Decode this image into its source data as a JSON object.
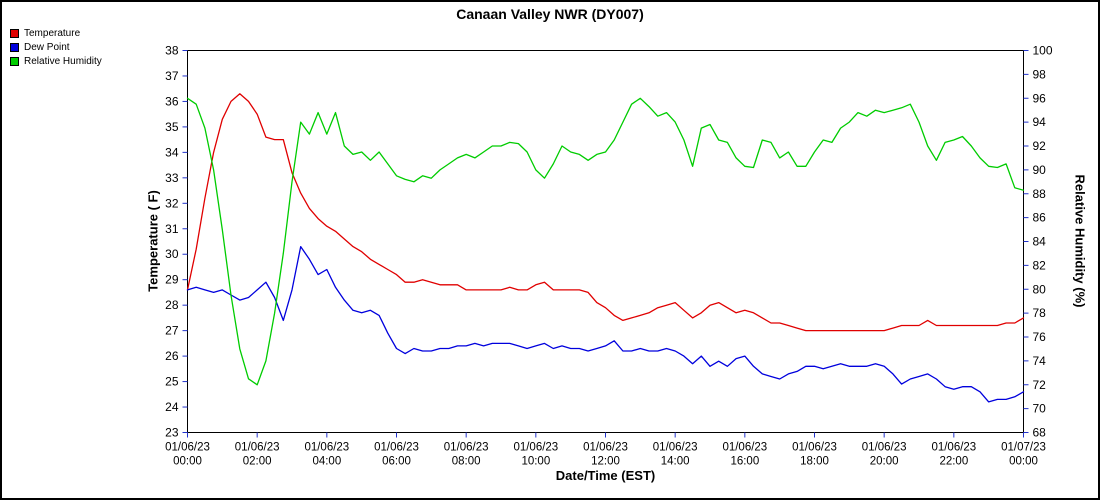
{
  "chart_data": {
    "type": "line",
    "title": "Canaan Valley NWR (DY007)",
    "tick_color": "#2233cc",
    "plot_background": "#ffffff",
    "grid": false,
    "legend_position": "top-left",
    "y_left": {
      "label": "Temperature ( F)",
      "min": 23,
      "max": 38,
      "step": 1
    },
    "y_right": {
      "label": "Relative Humidity (%)",
      "min": 68,
      "max": 100,
      "step": 2
    },
    "x_axis": {
      "label": "Date/Time (EST)",
      "min": 0,
      "max": 24,
      "ticks": [
        {
          "hour": 0,
          "date": "01/06/23",
          "time": "00:00"
        },
        {
          "hour": 2,
          "date": "01/06/23",
          "time": "02:00"
        },
        {
          "hour": 4,
          "date": "01/06/23",
          "time": "04:00"
        },
        {
          "hour": 6,
          "date": "01/06/23",
          "time": "06:00"
        },
        {
          "hour": 8,
          "date": "01/06/23",
          "time": "08:00"
        },
        {
          "hour": 10,
          "date": "01/06/23",
          "time": "10:00"
        },
        {
          "hour": 12,
          "date": "01/06/23",
          "time": "12:00"
        },
        {
          "hour": 14,
          "date": "01/06/23",
          "time": "14:00"
        },
        {
          "hour": 16,
          "date": "01/06/23",
          "time": "16:00"
        },
        {
          "hour": 18,
          "date": "01/06/23",
          "time": "18:00"
        },
        {
          "hour": 20,
          "date": "01/06/23",
          "time": "20:00"
        },
        {
          "hour": 22,
          "date": "01/06/23",
          "time": "22:00"
        },
        {
          "hour": 24,
          "date": "01/07/23",
          "time": "00:00"
        }
      ]
    },
    "x_hours": [
      0,
      0.25,
      0.5,
      0.75,
      1,
      1.25,
      1.5,
      1.75,
      2,
      2.25,
      2.5,
      2.75,
      3,
      3.25,
      3.5,
      3.75,
      4,
      4.25,
      4.5,
      4.75,
      5,
      5.25,
      5.5,
      5.75,
      6,
      6.25,
      6.5,
      6.75,
      7,
      7.25,
      7.5,
      7.75,
      8,
      8.25,
      8.5,
      8.75,
      9,
      9.25,
      9.5,
      9.75,
      10,
      10.25,
      10.5,
      10.75,
      11,
      11.25,
      11.5,
      11.75,
      12,
      12.25,
      12.5,
      12.75,
      13,
      13.25,
      13.5,
      13.75,
      14,
      14.25,
      14.5,
      14.75,
      15,
      15.25,
      15.5,
      15.75,
      16,
      16.25,
      16.5,
      16.75,
      17,
      17.25,
      17.5,
      17.75,
      18,
      18.25,
      18.5,
      18.75,
      19,
      19.25,
      19.5,
      19.75,
      20,
      20.25,
      20.5,
      20.75,
      21,
      21.25,
      21.5,
      21.75,
      22,
      22.25,
      22.5,
      22.75,
      23,
      23.25,
      23.5,
      23.75,
      24
    ],
    "series": [
      {
        "name": "Temperature",
        "color": "#e00000",
        "axis": "left",
        "unit": "F",
        "values": [
          28.6,
          30.2,
          32.2,
          34.0,
          35.3,
          36.0,
          36.3,
          36.0,
          35.5,
          34.6,
          34.5,
          34.5,
          33.2,
          32.4,
          31.8,
          31.4,
          31.1,
          30.9,
          30.6,
          30.3,
          30.1,
          29.8,
          29.6,
          29.4,
          29.2,
          28.9,
          28.9,
          29.0,
          28.9,
          28.8,
          28.8,
          28.8,
          28.6,
          28.6,
          28.6,
          28.6,
          28.6,
          28.7,
          28.6,
          28.6,
          28.8,
          28.9,
          28.6,
          28.6,
          28.6,
          28.6,
          28.5,
          28.1,
          27.9,
          27.6,
          27.4,
          27.5,
          27.6,
          27.7,
          27.9,
          28.0,
          28.1,
          27.8,
          27.5,
          27.7,
          28.0,
          28.1,
          27.9,
          27.7,
          27.8,
          27.7,
          27.5,
          27.3,
          27.3,
          27.2,
          27.1,
          27.0,
          27.0,
          27.0,
          27.0,
          27.0,
          27.0,
          27.0,
          27.0,
          27.0,
          27.0,
          27.1,
          27.2,
          27.2,
          27.2,
          27.4,
          27.2,
          27.2,
          27.2,
          27.2,
          27.2,
          27.2,
          27.2,
          27.2,
          27.3,
          27.3,
          27.5
        ]
      },
      {
        "name": "Dew Point",
        "color": "#0000dd",
        "axis": "left",
        "unit": "F",
        "values": [
          28.6,
          28.7,
          28.6,
          28.5,
          28.6,
          28.4,
          28.2,
          28.3,
          28.6,
          28.9,
          28.3,
          27.4,
          28.6,
          30.3,
          29.8,
          29.2,
          29.4,
          28.7,
          28.2,
          27.8,
          27.7,
          27.8,
          27.6,
          26.9,
          26.3,
          26.1,
          26.3,
          26.2,
          26.2,
          26.3,
          26.3,
          26.4,
          26.4,
          26.5,
          26.4,
          26.5,
          26.5,
          26.5,
          26.4,
          26.3,
          26.4,
          26.5,
          26.3,
          26.4,
          26.3,
          26.3,
          26.2,
          26.3,
          26.4,
          26.6,
          26.2,
          26.2,
          26.3,
          26.2,
          26.2,
          26.3,
          26.2,
          26.0,
          25.7,
          26.0,
          25.6,
          25.8,
          25.6,
          25.9,
          26.0,
          25.6,
          25.3,
          25.2,
          25.1,
          25.3,
          25.4,
          25.6,
          25.6,
          25.5,
          25.6,
          25.7,
          25.6,
          25.6,
          25.6,
          25.7,
          25.6,
          25.3,
          24.9,
          25.1,
          25.2,
          25.3,
          25.1,
          24.8,
          24.7,
          24.8,
          24.8,
          24.6,
          24.2,
          24.3,
          24.3,
          24.4,
          24.6
        ]
      },
      {
        "name": "Relative Humidity",
        "color": "#00cc00",
        "axis": "right",
        "unit": "%",
        "values": [
          96.0,
          95.5,
          93.5,
          90.0,
          85.0,
          79.5,
          75.0,
          72.5,
          72.0,
          74.0,
          78.0,
          83.0,
          89.0,
          94.0,
          93.0,
          94.8,
          93.0,
          94.8,
          92.0,
          91.3,
          91.5,
          90.8,
          91.5,
          90.5,
          89.5,
          89.2,
          89.0,
          89.5,
          89.3,
          90.0,
          90.5,
          91.0,
          91.3,
          91.0,
          91.5,
          92.0,
          92.0,
          92.3,
          92.2,
          91.5,
          90.0,
          89.3,
          90.5,
          92.0,
          91.5,
          91.3,
          90.8,
          91.3,
          91.5,
          92.5,
          94.0,
          95.5,
          96.0,
          95.3,
          94.5,
          94.8,
          94.0,
          92.5,
          90.3,
          93.5,
          93.8,
          92.5,
          92.3,
          91.0,
          90.3,
          90.2,
          92.5,
          92.3,
          91.0,
          91.5,
          90.3,
          90.3,
          91.5,
          92.5,
          92.3,
          93.5,
          94.0,
          94.8,
          94.5,
          95.0,
          94.8,
          95.0,
          95.2,
          95.5,
          94.0,
          92.0,
          90.8,
          92.3,
          92.5,
          92.8,
          92.0,
          91.0,
          90.3,
          90.2,
          90.5,
          88.5,
          88.3
        ]
      }
    ]
  }
}
